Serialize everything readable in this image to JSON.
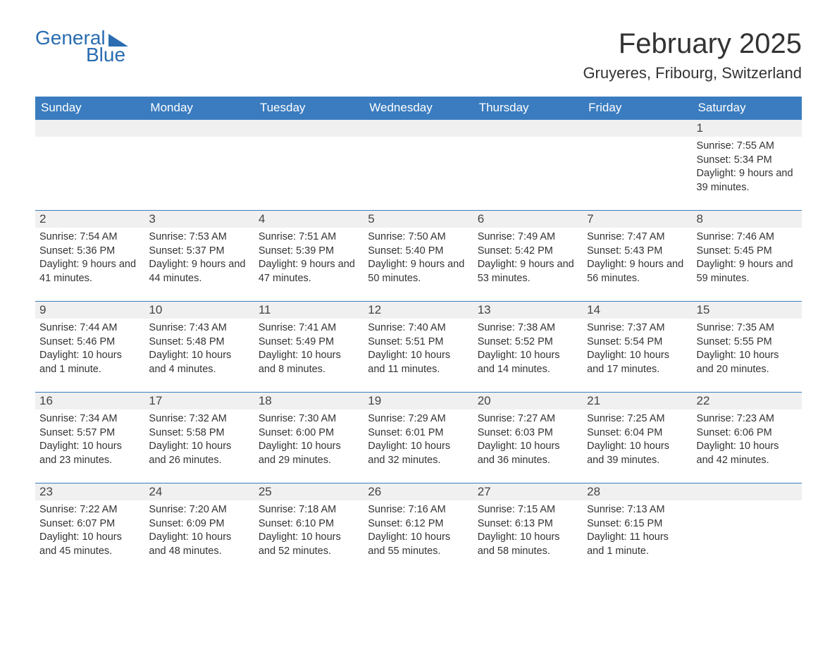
{
  "logo": {
    "general": "General",
    "blue": "Blue"
  },
  "title": "February 2025",
  "location": "Gruyeres, Fribourg, Switzerland",
  "colors": {
    "header_bg": "#3a7cbf",
    "header_text": "#ffffff",
    "daynum_bg": "#f0f0f0",
    "text": "#333333",
    "logo": "#2a6db0",
    "border": "#3a7cbf",
    "page_bg": "#ffffff"
  },
  "weekdays": [
    "Sunday",
    "Monday",
    "Tuesday",
    "Wednesday",
    "Thursday",
    "Friday",
    "Saturday"
  ],
  "weeks": [
    [
      {
        "num": "",
        "sunrise": "",
        "sunset": "",
        "daylight": ""
      },
      {
        "num": "",
        "sunrise": "",
        "sunset": "",
        "daylight": ""
      },
      {
        "num": "",
        "sunrise": "",
        "sunset": "",
        "daylight": ""
      },
      {
        "num": "",
        "sunrise": "",
        "sunset": "",
        "daylight": ""
      },
      {
        "num": "",
        "sunrise": "",
        "sunset": "",
        "daylight": ""
      },
      {
        "num": "",
        "sunrise": "",
        "sunset": "",
        "daylight": ""
      },
      {
        "num": "1",
        "sunrise": "Sunrise: 7:55 AM",
        "sunset": "Sunset: 5:34 PM",
        "daylight": "Daylight: 9 hours and 39 minutes."
      }
    ],
    [
      {
        "num": "2",
        "sunrise": "Sunrise: 7:54 AM",
        "sunset": "Sunset: 5:36 PM",
        "daylight": "Daylight: 9 hours and 41 minutes."
      },
      {
        "num": "3",
        "sunrise": "Sunrise: 7:53 AM",
        "sunset": "Sunset: 5:37 PM",
        "daylight": "Daylight: 9 hours and 44 minutes."
      },
      {
        "num": "4",
        "sunrise": "Sunrise: 7:51 AM",
        "sunset": "Sunset: 5:39 PM",
        "daylight": "Daylight: 9 hours and 47 minutes."
      },
      {
        "num": "5",
        "sunrise": "Sunrise: 7:50 AM",
        "sunset": "Sunset: 5:40 PM",
        "daylight": "Daylight: 9 hours and 50 minutes."
      },
      {
        "num": "6",
        "sunrise": "Sunrise: 7:49 AM",
        "sunset": "Sunset: 5:42 PM",
        "daylight": "Daylight: 9 hours and 53 minutes."
      },
      {
        "num": "7",
        "sunrise": "Sunrise: 7:47 AM",
        "sunset": "Sunset: 5:43 PM",
        "daylight": "Daylight: 9 hours and 56 minutes."
      },
      {
        "num": "8",
        "sunrise": "Sunrise: 7:46 AM",
        "sunset": "Sunset: 5:45 PM",
        "daylight": "Daylight: 9 hours and 59 minutes."
      }
    ],
    [
      {
        "num": "9",
        "sunrise": "Sunrise: 7:44 AM",
        "sunset": "Sunset: 5:46 PM",
        "daylight": "Daylight: 10 hours and 1 minute."
      },
      {
        "num": "10",
        "sunrise": "Sunrise: 7:43 AM",
        "sunset": "Sunset: 5:48 PM",
        "daylight": "Daylight: 10 hours and 4 minutes."
      },
      {
        "num": "11",
        "sunrise": "Sunrise: 7:41 AM",
        "sunset": "Sunset: 5:49 PM",
        "daylight": "Daylight: 10 hours and 8 minutes."
      },
      {
        "num": "12",
        "sunrise": "Sunrise: 7:40 AM",
        "sunset": "Sunset: 5:51 PM",
        "daylight": "Daylight: 10 hours and 11 minutes."
      },
      {
        "num": "13",
        "sunrise": "Sunrise: 7:38 AM",
        "sunset": "Sunset: 5:52 PM",
        "daylight": "Daylight: 10 hours and 14 minutes."
      },
      {
        "num": "14",
        "sunrise": "Sunrise: 7:37 AM",
        "sunset": "Sunset: 5:54 PM",
        "daylight": "Daylight: 10 hours and 17 minutes."
      },
      {
        "num": "15",
        "sunrise": "Sunrise: 7:35 AM",
        "sunset": "Sunset: 5:55 PM",
        "daylight": "Daylight: 10 hours and 20 minutes."
      }
    ],
    [
      {
        "num": "16",
        "sunrise": "Sunrise: 7:34 AM",
        "sunset": "Sunset: 5:57 PM",
        "daylight": "Daylight: 10 hours and 23 minutes."
      },
      {
        "num": "17",
        "sunrise": "Sunrise: 7:32 AM",
        "sunset": "Sunset: 5:58 PM",
        "daylight": "Daylight: 10 hours and 26 minutes."
      },
      {
        "num": "18",
        "sunrise": "Sunrise: 7:30 AM",
        "sunset": "Sunset: 6:00 PM",
        "daylight": "Daylight: 10 hours and 29 minutes."
      },
      {
        "num": "19",
        "sunrise": "Sunrise: 7:29 AM",
        "sunset": "Sunset: 6:01 PM",
        "daylight": "Daylight: 10 hours and 32 minutes."
      },
      {
        "num": "20",
        "sunrise": "Sunrise: 7:27 AM",
        "sunset": "Sunset: 6:03 PM",
        "daylight": "Daylight: 10 hours and 36 minutes."
      },
      {
        "num": "21",
        "sunrise": "Sunrise: 7:25 AM",
        "sunset": "Sunset: 6:04 PM",
        "daylight": "Daylight: 10 hours and 39 minutes."
      },
      {
        "num": "22",
        "sunrise": "Sunrise: 7:23 AM",
        "sunset": "Sunset: 6:06 PM",
        "daylight": "Daylight: 10 hours and 42 minutes."
      }
    ],
    [
      {
        "num": "23",
        "sunrise": "Sunrise: 7:22 AM",
        "sunset": "Sunset: 6:07 PM",
        "daylight": "Daylight: 10 hours and 45 minutes."
      },
      {
        "num": "24",
        "sunrise": "Sunrise: 7:20 AM",
        "sunset": "Sunset: 6:09 PM",
        "daylight": "Daylight: 10 hours and 48 minutes."
      },
      {
        "num": "25",
        "sunrise": "Sunrise: 7:18 AM",
        "sunset": "Sunset: 6:10 PM",
        "daylight": "Daylight: 10 hours and 52 minutes."
      },
      {
        "num": "26",
        "sunrise": "Sunrise: 7:16 AM",
        "sunset": "Sunset: 6:12 PM",
        "daylight": "Daylight: 10 hours and 55 minutes."
      },
      {
        "num": "27",
        "sunrise": "Sunrise: 7:15 AM",
        "sunset": "Sunset: 6:13 PM",
        "daylight": "Daylight: 10 hours and 58 minutes."
      },
      {
        "num": "28",
        "sunrise": "Sunrise: 7:13 AM",
        "sunset": "Sunset: 6:15 PM",
        "daylight": "Daylight: 11 hours and 1 minute."
      },
      {
        "num": "",
        "sunrise": "",
        "sunset": "",
        "daylight": ""
      }
    ]
  ]
}
